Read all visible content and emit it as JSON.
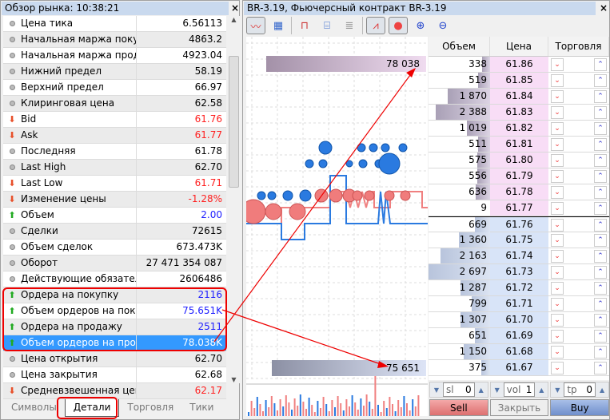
{
  "market": {
    "title": "Обзор рынка: 10:38:21",
    "close": "×",
    "rows": [
      {
        "name": "Цена тика",
        "value": "6.56113",
        "icon": "dot",
        "color": "#000000"
      },
      {
        "name": "Начальная маржа поку...",
        "value": "4863.2",
        "icon": "dot",
        "color": "#000000"
      },
      {
        "name": "Начальная маржа прод...",
        "value": "4923.04",
        "icon": "dot",
        "color": "#000000"
      },
      {
        "name": "Нижний предел",
        "value": "58.19",
        "icon": "dot",
        "color": "#000000"
      },
      {
        "name": "Верхний предел",
        "value": "66.97",
        "icon": "dot",
        "color": "#000000"
      },
      {
        "name": "Клиринговая цена",
        "value": "62.58",
        "icon": "dot",
        "color": "#000000"
      },
      {
        "name": "Bid",
        "value": "61.76",
        "icon": "down",
        "color": "#ff2020"
      },
      {
        "name": "Ask",
        "value": "61.77",
        "icon": "down",
        "color": "#ff2020"
      },
      {
        "name": "Последняя",
        "value": "61.78",
        "icon": "dot",
        "color": "#000000"
      },
      {
        "name": "Last High",
        "value": "62.70",
        "icon": "dot",
        "color": "#000000"
      },
      {
        "name": "Last Low",
        "value": "61.71",
        "icon": "down",
        "color": "#ff2020"
      },
      {
        "name": "Изменение цены",
        "value": "-1.28%",
        "icon": "down",
        "color": "#ff2020"
      },
      {
        "name": "Объем",
        "value": "2.00",
        "icon": "up",
        "color": "#2020ff"
      },
      {
        "name": "Сделки",
        "value": "72615",
        "icon": "dot",
        "color": "#000000"
      },
      {
        "name": "Объем сделок",
        "value": "673.473K",
        "icon": "dot",
        "color": "#000000"
      },
      {
        "name": "Оборот",
        "value": "27 471 354 087",
        "icon": "dot",
        "color": "#000000"
      },
      {
        "name": "Действующие обязател...",
        "value": "2606486",
        "icon": "dot",
        "color": "#000000"
      },
      {
        "name": "Ордера на покупку",
        "value": "2116",
        "icon": "up",
        "color": "#2020ff"
      },
      {
        "name": "Объем ордеров на поку...",
        "value": "75.651K",
        "icon": "up",
        "color": "#2020ff"
      },
      {
        "name": "Ордера на продажу",
        "value": "2511",
        "icon": "up",
        "color": "#2020ff"
      },
      {
        "name": "Объем ордеров на про...",
        "value": "78.038K",
        "icon": "up",
        "color": "#2020ff",
        "selected": true
      },
      {
        "name": "Цена открытия",
        "value": "62.70",
        "icon": "dot",
        "color": "#000000"
      },
      {
        "name": "Цена закрытия",
        "value": "62.68",
        "icon": "dot",
        "color": "#000000"
      },
      {
        "name": "Средневзвешенная цена",
        "value": "62.17",
        "icon": "down",
        "color": "#ff2020"
      }
    ],
    "tabs": [
      "Символы",
      "Детали",
      "Торговля",
      "Тики"
    ],
    "active_tab": 1
  },
  "depth": {
    "title": "BR-3.19, Фьючерсный контракт BR-3.19",
    "close": "×",
    "toolbar": [
      "chart-mode-icon",
      "time-table-icon",
      "magnet-icon",
      "cylinder-icon",
      "list-icon",
      "ticks-line-icon",
      "bubbles-icon",
      "zoom-in-icon",
      "zoom-out-icon"
    ],
    "sell_total": "78 038",
    "buy_total": "75 651",
    "headers": [
      "Объем",
      "Цена",
      "Торговля"
    ],
    "asks": [
      {
        "vol": "338",
        "v": 338,
        "price": "61.86"
      },
      {
        "vol": "519",
        "v": 519,
        "price": "61.85"
      },
      {
        "vol": "1 870",
        "v": 1870,
        "price": "61.84"
      },
      {
        "vol": "2 388",
        "v": 2388,
        "price": "61.83"
      },
      {
        "vol": "1 019",
        "v": 1019,
        "price": "61.82"
      },
      {
        "vol": "511",
        "v": 511,
        "price": "61.81"
      },
      {
        "vol": "575",
        "v": 575,
        "price": "61.80"
      },
      {
        "vol": "556",
        "v": 556,
        "price": "61.79"
      },
      {
        "vol": "636",
        "v": 636,
        "price": "61.78"
      },
      {
        "vol": "9",
        "v": 9,
        "price": "61.77"
      }
    ],
    "bids": [
      {
        "vol": "669",
        "v": 669,
        "price": "61.76"
      },
      {
        "vol": "1 360",
        "v": 1360,
        "price": "61.75"
      },
      {
        "vol": "2 163",
        "v": 2163,
        "price": "61.74"
      },
      {
        "vol": "2 697",
        "v": 2697,
        "price": "61.73"
      },
      {
        "vol": "1 287",
        "v": 1287,
        "price": "61.72"
      },
      {
        "vol": "799",
        "v": 799,
        "price": "61.71"
      },
      {
        "vol": "1 307",
        "v": 1307,
        "price": "61.70"
      },
      {
        "vol": "651",
        "v": 651,
        "price": "61.69"
      },
      {
        "vol": "1 150",
        "v": 1150,
        "price": "61.68"
      },
      {
        "vol": "375",
        "v": 375,
        "price": "61.67"
      }
    ],
    "sl": {
      "label": "sl",
      "value": "0"
    },
    "vol": {
      "label": "vol",
      "value": "1"
    },
    "tp": {
      "label": "tp",
      "value": "0"
    },
    "sell": "Sell",
    "close_btn": "Закрыть",
    "buy": "Buy",
    "colors": {
      "ask": "#f8ddf6",
      "bid": "#d8e4f8",
      "sell": "#e88888",
      "buy": "#7f9fd4"
    }
  }
}
